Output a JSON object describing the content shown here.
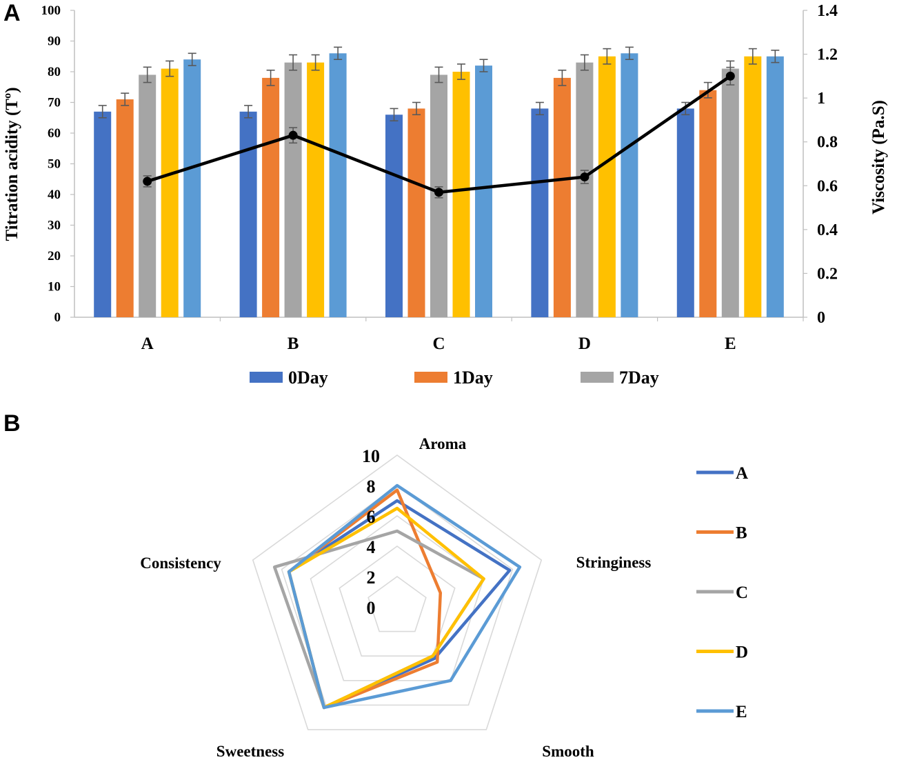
{
  "panel_a_label": "A",
  "panel_b_label": "B",
  "colors": {
    "series": [
      "#4472C4",
      "#ED7D31",
      "#A5A5A5",
      "#FFC000",
      "#5B9BD5"
    ],
    "line": "#000000",
    "grid": "#D9D9D9",
    "axis": "#BFBFBF"
  },
  "chart_data": [
    {
      "type": "bar",
      "title": "",
      "xlabel": "",
      "ylabel": "Titration acidity (Tº)",
      "y2label": "Viscosity (Pa.S)",
      "ylim": [
        0,
        100
      ],
      "y2lim": [
        0,
        1.4
      ],
      "yticks": [
        "0",
        "10",
        "20",
        "30",
        "40",
        "50",
        "60",
        "70",
        "80",
        "90",
        "100"
      ],
      "y2ticks": [
        "0",
        "0.2",
        "0.4",
        "0.6",
        "0.8",
        "1",
        "1.2",
        "1.4"
      ],
      "categories": [
        "A",
        "B",
        "C",
        "D",
        "E"
      ],
      "series": [
        {
          "name": "0Day",
          "values": [
            67,
            67,
            66,
            68,
            68
          ],
          "errors": [
            2,
            2,
            2,
            2,
            2
          ]
        },
        {
          "name": "1Day",
          "values": [
            71,
            78,
            68,
            78,
            74
          ],
          "errors": [
            2,
            2.5,
            2,
            2.5,
            2.5
          ]
        },
        {
          "name": "7Day",
          "values": [
            79,
            83,
            79,
            83,
            81
          ],
          "errors": [
            2.5,
            2.5,
            2.5,
            2.5,
            2.5
          ]
        },
        {
          "name": "",
          "values": [
            81,
            83,
            80,
            85,
            85
          ],
          "errors": [
            2.5,
            2.5,
            2.5,
            2.5,
            2.5
          ]
        },
        {
          "name": "",
          "values": [
            84,
            86,
            82,
            86,
            85
          ],
          "errors": [
            2,
            2,
            2,
            2,
            2
          ]
        }
      ],
      "viscosity": {
        "values": [
          0.62,
          0.83,
          0.57,
          0.64,
          1.1
        ],
        "errors": [
          0.025,
          0.035,
          0.025,
          0.03,
          0.04
        ]
      },
      "legend": [
        "0Day",
        "1Day",
        "7Day"
      ]
    },
    {
      "type": "radar",
      "axes": [
        "Aroma",
        "Stringiness",
        "Smooth",
        "Sweetness",
        "Consistency"
      ],
      "rlim": [
        0,
        10
      ],
      "rticks": [
        "0",
        "2",
        "4",
        "6",
        "8",
        "10"
      ],
      "series": [
        {
          "name": "A",
          "values": [
            7,
            7.8,
            4.2,
            8.2,
            7.5
          ]
        },
        {
          "name": "B",
          "values": [
            7.7,
            3,
            4.5,
            8.2,
            7.5
          ]
        },
        {
          "name": "C",
          "values": [
            5,
            6,
            4,
            8.2,
            8.5
          ]
        },
        {
          "name": "D",
          "values": [
            6.5,
            6,
            4,
            8.2,
            7.5
          ]
        },
        {
          "name": "E",
          "values": [
            8,
            8.5,
            6,
            8.2,
            7.5
          ]
        }
      ]
    }
  ]
}
